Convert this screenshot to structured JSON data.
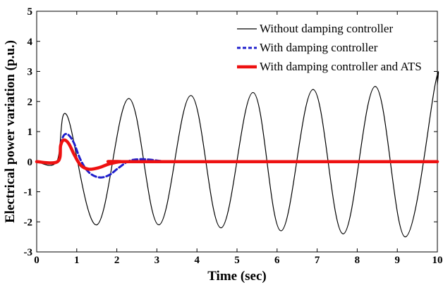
{
  "chart_data": {
    "type": "line",
    "title": "",
    "xlabel": "Time (sec)",
    "ylabel": "Electrical power variation (p.u.)",
    "xlim": [
      0,
      10
    ],
    "ylim": [
      -3,
      5
    ],
    "xticks": [
      0,
      1,
      2,
      3,
      4,
      5,
      6,
      7,
      8,
      9,
      10
    ],
    "yticks": [
      -3,
      -2,
      -1,
      0,
      1,
      2,
      3,
      4,
      5
    ],
    "grid": false,
    "legend_position": "top-right",
    "series": [
      {
        "name": "Without damping controller",
        "color": "#000000",
        "style": "solid",
        "x": [
          0,
          0.5,
          0.75,
          1.5,
          2.3,
          3.05,
          3.85,
          4.6,
          5.4,
          6.1,
          6.9,
          7.65,
          8.45,
          9.2,
          9.95,
          10
        ],
        "y": [
          0,
          0,
          1.55,
          -2.1,
          2.1,
          -2.1,
          2.2,
          -2.2,
          2.3,
          -2.3,
          2.4,
          -2.4,
          2.5,
          -2.5,
          2.6,
          2.55
        ]
      },
      {
        "name": "With damping controller",
        "color": "#1f1fcc",
        "style": "dashed",
        "x": [
          0,
          0.52,
          0.6,
          0.72,
          0.9,
          1.1,
          1.3,
          1.55,
          1.8,
          2.05,
          2.3,
          2.55,
          2.8,
          3.05,
          3.3,
          3.6,
          10
        ],
        "y": [
          0,
          0,
          0.6,
          0.92,
          0.7,
          0.05,
          -0.35,
          -0.52,
          -0.45,
          -0.2,
          0.02,
          0.08,
          0.07,
          0.03,
          0.0,
          0.0,
          0.0
        ]
      },
      {
        "name": "With damping controller and ATS",
        "color": "#ee1111",
        "style": "solid",
        "x": [
          0,
          0.52,
          0.6,
          0.68,
          0.8,
          0.95,
          1.1,
          1.3,
          1.55,
          1.8,
          2.1,
          2.5,
          10
        ],
        "y": [
          0,
          0,
          0.55,
          0.72,
          0.6,
          0.2,
          -0.12,
          -0.25,
          -0.2,
          -0.08,
          0.0,
          0.0,
          0.0
        ]
      }
    ]
  }
}
